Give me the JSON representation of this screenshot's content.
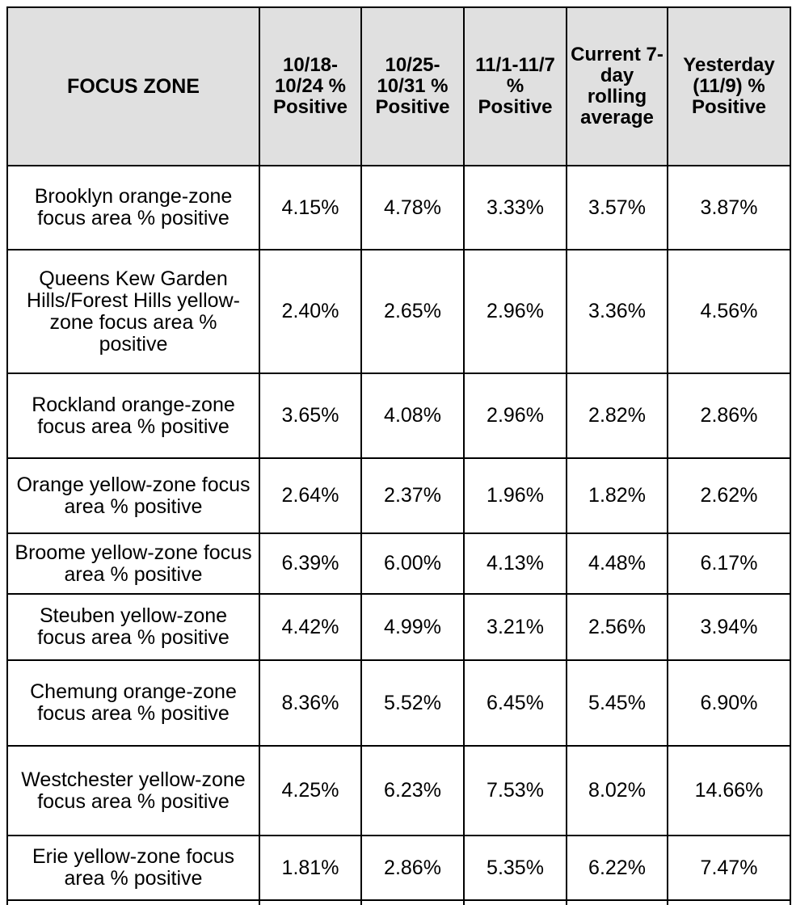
{
  "table": {
    "headers": [
      "FOCUS ZONE",
      "10/18-10/24 % Positive",
      "10/25-10/31 % Positive",
      "11/1-11/7 % Positive",
      "Current 7-day rolling average",
      "Yesterday (11/9) % Positive"
    ],
    "rows": [
      {
        "zone": "Brooklyn orange-zone focus area % positive",
        "values": [
          "4.15%",
          "4.78%",
          "3.33%",
          "3.57%",
          "3.87%"
        ]
      },
      {
        "zone": "Queens Kew Garden Hills/Forest Hills yellow-zone focus area % positive",
        "values": [
          "2.40%",
          "2.65%",
          "2.96%",
          "3.36%",
          "4.56%"
        ]
      },
      {
        "zone": "Rockland orange-zone focus area % positive",
        "values": [
          "3.65%",
          "4.08%",
          "2.96%",
          "2.82%",
          "2.86%"
        ]
      },
      {
        "zone": "Orange yellow-zone focus area % positive",
        "values": [
          "2.64%",
          "2.37%",
          "1.96%",
          "1.82%",
          "2.62%"
        ]
      },
      {
        "zone": "Broome yellow-zone focus area % positive",
        "values": [
          "6.39%",
          "6.00%",
          "4.13%",
          "4.48%",
          "6.17%"
        ]
      },
      {
        "zone": "Steuben yellow-zone focus area % positive",
        "values": [
          "4.42%",
          "4.99%",
          "3.21%",
          "2.56%",
          "3.94%"
        ]
      },
      {
        "zone": "Chemung orange-zone focus area % positive",
        "values": [
          "8.36%",
          "5.52%",
          "6.45%",
          "5.45%",
          "6.90%"
        ]
      },
      {
        "zone": "Westchester yellow-zone focus area % positive",
        "values": [
          "4.25%",
          "6.23%",
          "7.53%",
          "8.02%",
          "14.66%"
        ]
      },
      {
        "zone": "Erie yellow-zone focus area % positive",
        "values": [
          "1.81%",
          "2.86%",
          "5.35%",
          "6.22%",
          "7.47%"
        ]
      }
    ]
  }
}
